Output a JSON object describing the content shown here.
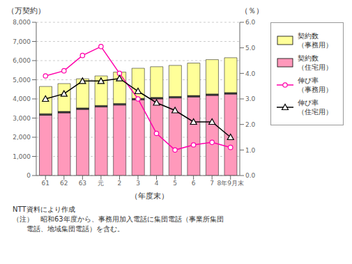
{
  "chart_data": {
    "type": "bar",
    "stacked": true,
    "grid": true,
    "categories": [
      "61",
      "62",
      "63",
      "元",
      "2",
      "3",
      "4",
      "5",
      "6",
      "7",
      "8年9月末"
    ],
    "xlabel": "（年度末）",
    "ylabel": "（万契約）",
    "y2label": "（％）",
    "ylim": [
      0,
      8000
    ],
    "yticks": [
      0,
      {
        "value": 1000,
        "label": "1,000"
      },
      {
        "value": 2000,
        "label": "2,000"
      },
      {
        "value": 3000,
        "label": "3,000"
      },
      {
        "value": 4000,
        "label": "4,000"
      },
      {
        "value": 5000,
        "label": "5,000"
      },
      {
        "value": 6000,
        "label": "6,000"
      },
      {
        "value": 7000,
        "label": "7,000"
      },
      {
        "value": 8000,
        "label": "8,000"
      }
    ],
    "y2lim": [
      0,
      6.0
    ],
    "y2ticks": [
      {
        "value": 0,
        "label": "0.0"
      },
      {
        "value": 1,
        "label": "1.0"
      },
      {
        "value": 2,
        "label": "2.0"
      },
      {
        "value": 3,
        "label": "3.0"
      },
      {
        "value": 4,
        "label": "4.0"
      },
      {
        "value": 5,
        "label": "5.0"
      },
      {
        "value": 6,
        "label": "6.0"
      }
    ],
    "series": [
      {
        "name": "契約数\n（住宅用）",
        "type": "bar",
        "color": "#FF99BB",
        "values": [
          3150,
          3270,
          3450,
          3580,
          3680,
          3950,
          4000,
          4050,
          4100,
          4180,
          4250
        ]
      },
      {
        "type": "bar",
        "color": "#444444",
        "values": [
          80,
          80,
          80,
          80,
          80,
          80,
          80,
          80,
          80,
          80,
          80
        ]
      },
      {
        "name": "契約数\n（事務用）",
        "type": "bar",
        "color": "#FFFF99",
        "values": [
          1420,
          1450,
          1520,
          1540,
          1640,
          1570,
          1600,
          1620,
          1690,
          1790,
          1820
        ]
      },
      {
        "name": "伸び率\n（事務用）",
        "type": "line",
        "axis": "y2",
        "color": "#FF00AA",
        "marker": "circle",
        "values": [
          3.9,
          4.1,
          4.7,
          5.05,
          4.0,
          3.0,
          1.65,
          1.0,
          1.2,
          1.3,
          1.1
        ]
      },
      {
        "name": "伸び率\n（住宅用）",
        "type": "line",
        "axis": "y2",
        "color": "#000000",
        "marker": "triangle",
        "values": [
          3.0,
          3.2,
          3.7,
          3.7,
          3.8,
          3.3,
          2.85,
          2.55,
          2.1,
          2.1,
          1.5
        ]
      }
    ],
    "annotations": [
      "NTT資料により作成",
      "（注）　昭和63年度から、事務用加入電話に集団電話（事業所集団",
      "　　電話、地域集団電話）を含む。"
    ]
  }
}
